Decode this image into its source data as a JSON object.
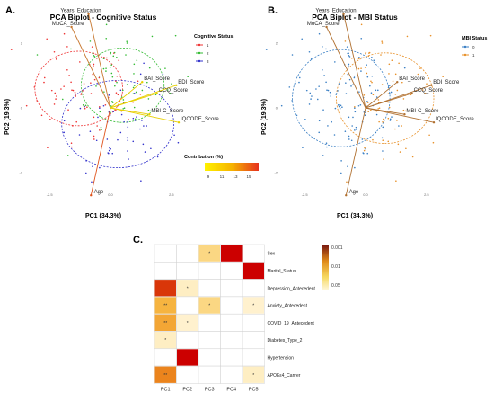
{
  "colors": {
    "cog1": "#ee3333",
    "cog2": "#33bb33",
    "cog3": "#3333cc",
    "mbi0": "#3a7fc4",
    "mbi1": "#e8912a",
    "arrow": "#b07030",
    "arrow_yellow": "#e8d000",
    "heat_low": "#fff5d8",
    "heat_mid": "#f9c24a",
    "heat_high": "#cc0000",
    "grid": "#d0d0d0"
  },
  "chart_data": [
    {
      "type": "scatter",
      "panel_label": "A.",
      "title": "PCA Biplot - Cognitive Status",
      "xlabel": "PC1 (34.3%)",
      "ylabel": "PC2 (19.3%)",
      "xlim": [
        -3.5,
        3.5
      ],
      "ylim": [
        -2.5,
        2.5
      ],
      "x_ticks": [
        "-2.5",
        "0.0",
        "2.5"
      ],
      "y_ticks": [
        "2",
        "0",
        "-2"
      ],
      "legend": {
        "title": "Cognitive Status",
        "entries": [
          "1",
          "2",
          "3"
        ],
        "placement": "right"
      },
      "contribution_legend": {
        "title": "Contribution (%)",
        "ticks": [
          "9",
          "11",
          "13",
          "15"
        ]
      },
      "variables": [
        {
          "name": "Years_Education",
          "x": -0.9,
          "y": 2.9,
          "contribution": 11
        },
        {
          "name": "MoCA_Score",
          "x": -1.6,
          "y": 2.5,
          "contribution": 12
        },
        {
          "name": "BAI_Score",
          "x": 1.3,
          "y": 0.8,
          "contribution": 10
        },
        {
          "name": "BDI_Score",
          "x": 2.7,
          "y": 0.7,
          "contribution": 10
        },
        {
          "name": "CCQ_Score",
          "x": 1.9,
          "y": 0.45,
          "contribution": 9
        },
        {
          "name": "MBI-C_Score",
          "x": 1.6,
          "y": -0.2,
          "contribution": 9
        },
        {
          "name": "IQCODE_Score",
          "x": 2.8,
          "y": -0.45,
          "contribution": 9
        },
        {
          "name": "Age",
          "x": -0.8,
          "y": -2.7,
          "contribution": 15
        }
      ]
    },
    {
      "type": "scatter",
      "panel_label": "B.",
      "title": "PCA Biplot - MBI Status",
      "xlabel": "PC1 (34.3%)",
      "ylabel": "PC2 (19.3%)",
      "xlim": [
        -3.5,
        3.5
      ],
      "ylim": [
        -2.5,
        2.5
      ],
      "x_ticks": [
        "-2.5",
        "0.0",
        "2.5"
      ],
      "y_ticks": [
        "2",
        "0",
        "-2"
      ],
      "legend": {
        "title": "MBI Status",
        "entries": [
          "0",
          "1"
        ],
        "placement": "right"
      },
      "variables": [
        {
          "name": "Years_Education",
          "x": -0.9,
          "y": 2.9
        },
        {
          "name": "MoCA_Score",
          "x": -1.6,
          "y": 2.5
        },
        {
          "name": "BAI_Score",
          "x": 1.3,
          "y": 0.8
        },
        {
          "name": "BDI_Score",
          "x": 2.7,
          "y": 0.7
        },
        {
          "name": "CCQ_Score",
          "x": 1.9,
          "y": 0.45
        },
        {
          "name": "MBI-C_Score",
          "x": 1.6,
          "y": -0.2
        },
        {
          "name": "IQCODE_Score",
          "x": 2.8,
          "y": -0.45
        },
        {
          "name": "Age",
          "x": -0.8,
          "y": -2.7
        }
      ]
    },
    {
      "type": "heatmap",
      "panel_label": "C.",
      "columns": [
        "PC1",
        "PC2",
        "PC3",
        "PC4",
        "PC5"
      ],
      "rows": [
        "Sex",
        "Marital_Status",
        "Depression_Antecedent",
        "Anxiety_Antecedent",
        "COVID_19_Antecedent",
        "Diabetes_Type_2",
        "Hypertension",
        "APOEε4_Carrier"
      ],
      "color_scale_ticks": [
        "0.001",
        "0.01",
        "0.05"
      ],
      "cells": [
        {
          "row": 0,
          "col": 2,
          "p": 0.02,
          "mark": "*"
        },
        {
          "row": 0,
          "col": 3,
          "p": 0.0005,
          "mark": ""
        },
        {
          "row": 1,
          "col": 4,
          "p": 0.0005,
          "mark": ""
        },
        {
          "row": 2,
          "col": 0,
          "p": 0.001,
          "mark": ""
        },
        {
          "row": 2,
          "col": 1,
          "p": 0.04,
          "mark": "*"
        },
        {
          "row": 3,
          "col": 0,
          "p": 0.008,
          "mark": "**"
        },
        {
          "row": 3,
          "col": 2,
          "p": 0.02,
          "mark": "*"
        },
        {
          "row": 3,
          "col": 4,
          "p": 0.045,
          "mark": "*"
        },
        {
          "row": 4,
          "col": 0,
          "p": 0.006,
          "mark": "**"
        },
        {
          "row": 4,
          "col": 1,
          "p": 0.045,
          "mark": "*"
        },
        {
          "row": 5,
          "col": 0,
          "p": 0.04,
          "mark": "*"
        },
        {
          "row": 6,
          "col": 1,
          "p": 0.0005,
          "mark": ""
        },
        {
          "row": 7,
          "col": 0,
          "p": 0.003,
          "mark": "**"
        },
        {
          "row": 7,
          "col": 4,
          "p": 0.04,
          "mark": "*"
        }
      ]
    }
  ]
}
